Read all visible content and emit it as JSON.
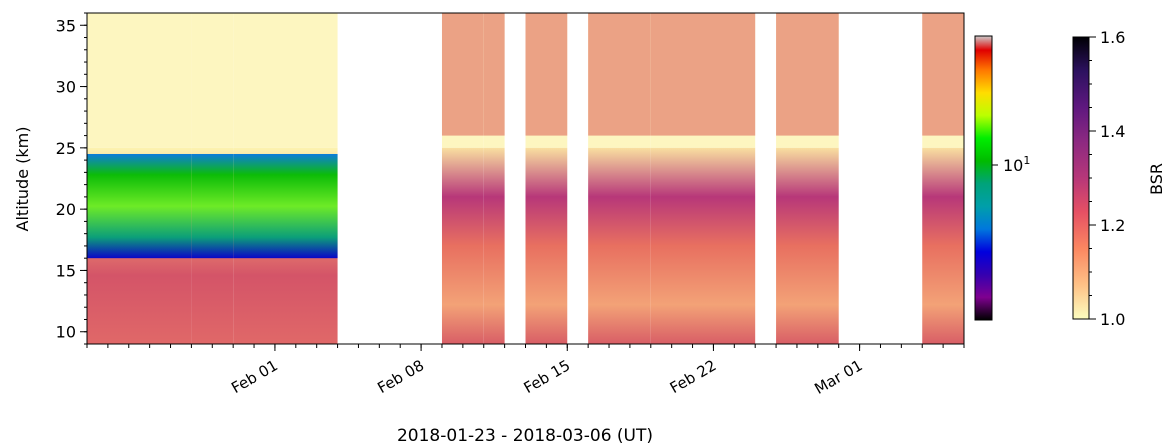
{
  "chart_data": {
    "type": "heatmap",
    "xlabel": "2018-01-23 - 2018-03-06 (UT)",
    "ylabel": "Altitude (km)",
    "xlim": [
      "2018-01-23",
      "2018-03-06"
    ],
    "ylim": [
      9,
      36
    ],
    "x_ticks": [
      {
        "label": "Feb 01",
        "date": "2018-02-01"
      },
      {
        "label": "Feb 08",
        "date": "2018-02-08"
      },
      {
        "label": "Feb 15",
        "date": "2018-02-15"
      },
      {
        "label": "Feb 22",
        "date": "2018-02-22"
      },
      {
        "label": "Mar 01",
        "date": "2018-03-01"
      }
    ],
    "y_ticks": [
      10,
      15,
      20,
      25,
      30,
      35
    ],
    "colorbars": [
      {
        "colormap": "nipy_spectral",
        "scale": "log",
        "tick_label_base": "10",
        "tick_label_exp": "1",
        "tick_value": 10
      },
      {
        "colormap": "magma_r",
        "label": "BSR",
        "range": [
          1.0,
          1.6
        ],
        "ticks": [
          "1.0",
          "1.2",
          "1.4",
          "1.6"
        ]
      }
    ],
    "data_periods": [
      {
        "start": "2018-01-23",
        "end": "2018-01-28"
      },
      {
        "start": "2018-01-28",
        "end": "2018-01-30"
      },
      {
        "start": "2018-01-30",
        "end": "2018-02-04"
      },
      {
        "start": "2018-02-09",
        "end": "2018-02-11"
      },
      {
        "start": "2018-02-11",
        "end": "2018-02-12"
      },
      {
        "start": "2018-02-13",
        "end": "2018-02-15"
      },
      {
        "start": "2018-02-16",
        "end": "2018-02-19"
      },
      {
        "start": "2018-02-19",
        "end": "2018-02-24"
      },
      {
        "start": "2018-02-25",
        "end": "2018-02-28"
      },
      {
        "start": "2018-03-04",
        "end": "2018-03-06"
      }
    ]
  }
}
